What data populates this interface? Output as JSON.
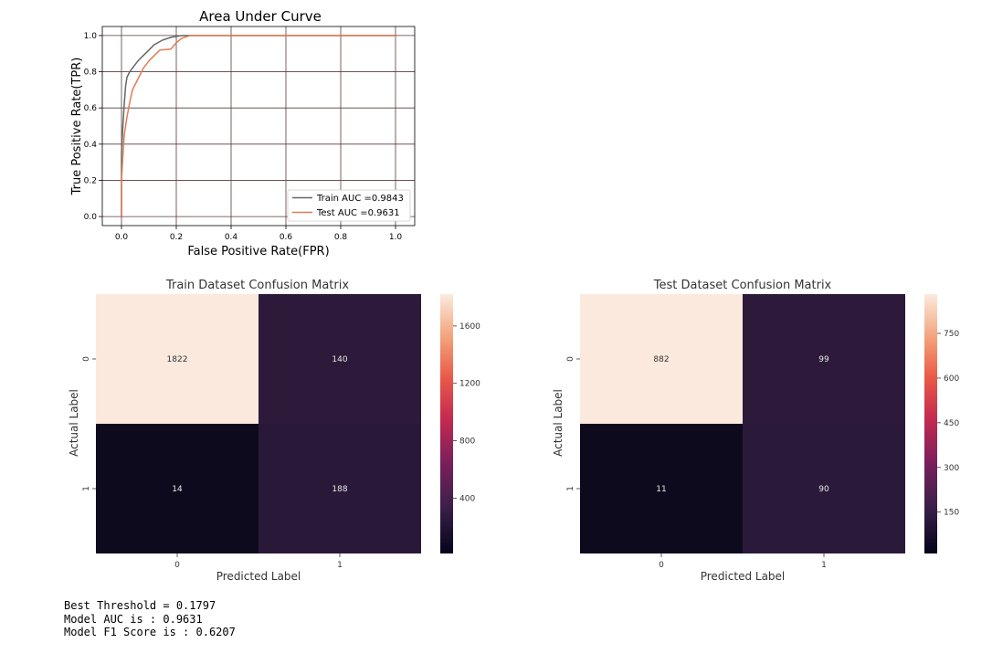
{
  "chart_data": [
    {
      "type": "line",
      "title": "Area Under Curve",
      "xlabel": "False Positive Rate(FPR)",
      "ylabel": "True Positive Rate(TPR)",
      "xlim": [
        -0.07,
        1.07
      ],
      "ylim": [
        -0.05,
        1.05
      ],
      "x_ticks": [
        "0.0",
        "0.2",
        "0.4",
        "0.6",
        "0.8",
        "1.0"
      ],
      "y_ticks": [
        "0.0",
        "0.2",
        "0.4",
        "0.6",
        "0.8",
        "1.0"
      ],
      "grid": true,
      "legend_position": "bottom-right",
      "colors": {
        "train": "#666666",
        "test": "#e07b54",
        "grid": "#5a3a3a"
      },
      "series": [
        {
          "name": "Train AUC =0.9843",
          "points": [
            [
              0,
              0
            ],
            [
              0,
              0.35
            ],
            [
              0.005,
              0.5
            ],
            [
              0.01,
              0.62
            ],
            [
              0.015,
              0.72
            ],
            [
              0.02,
              0.77
            ],
            [
              0.03,
              0.8
            ],
            [
              0.045,
              0.83
            ],
            [
              0.06,
              0.86
            ],
            [
              0.08,
              0.89
            ],
            [
              0.1,
              0.92
            ],
            [
              0.12,
              0.95
            ],
            [
              0.15,
              0.975
            ],
            [
              0.18,
              0.99
            ],
            [
              0.2,
              0.995
            ],
            [
              0.22,
              1.0
            ],
            [
              0.27,
              1.0
            ],
            [
              1.0,
              1.0
            ]
          ]
        },
        {
          "name": "Test AUC =0.9631",
          "points": [
            [
              0,
              0
            ],
            [
              0,
              0.2
            ],
            [
              0.005,
              0.33
            ],
            [
              0.01,
              0.45
            ],
            [
              0.02,
              0.55
            ],
            [
              0.03,
              0.63
            ],
            [
              0.04,
              0.7
            ],
            [
              0.06,
              0.76
            ],
            [
              0.08,
              0.82
            ],
            [
              0.1,
              0.86
            ],
            [
              0.12,
              0.89
            ],
            [
              0.14,
              0.92
            ],
            [
              0.18,
              0.925
            ],
            [
              0.2,
              0.96
            ],
            [
              0.22,
              0.985
            ],
            [
              0.25,
              1.0
            ],
            [
              1.0,
              1.0
            ]
          ]
        }
      ]
    },
    {
      "type": "heatmap",
      "title": "Train Dataset Confusion Matrix",
      "xlabel": "Predicted Label",
      "ylabel": "Actual Label",
      "row_labels": [
        "0",
        "1"
      ],
      "col_labels": [
        "0",
        "1"
      ],
      "values": [
        [
          1822,
          140
        ],
        [
          14,
          188
        ]
      ],
      "cell_colors": [
        [
          "#fbe9dd",
          "#2d1a3a"
        ],
        [
          "#0d0a1e",
          "#2a1838"
        ]
      ],
      "colorbar_ticks": [
        400,
        800,
        1200,
        1600
      ],
      "colorbar_range": [
        14,
        1822
      ]
    },
    {
      "type": "heatmap",
      "title": "Test Dataset Confusion Matrix",
      "xlabel": "Predicted Label",
      "ylabel": "Actual Label",
      "row_labels": [
        "0",
        "1"
      ],
      "col_labels": [
        "0",
        "1"
      ],
      "values": [
        [
          882,
          99
        ],
        [
          11,
          90
        ]
      ],
      "cell_colors": [
        [
          "#fbe9dd",
          "#2d1a3a"
        ],
        [
          "#0d0a1e",
          "#2b1939"
        ]
      ],
      "colorbar_ticks": [
        150,
        300,
        450,
        600,
        750
      ],
      "colorbar_range": [
        11,
        882
      ]
    }
  ],
  "output": {
    "lines": [
      "Best Threshold = 0.1797",
      "Model AUC is : 0.9631",
      "Model F1 Score is : 0.6207"
    ]
  }
}
